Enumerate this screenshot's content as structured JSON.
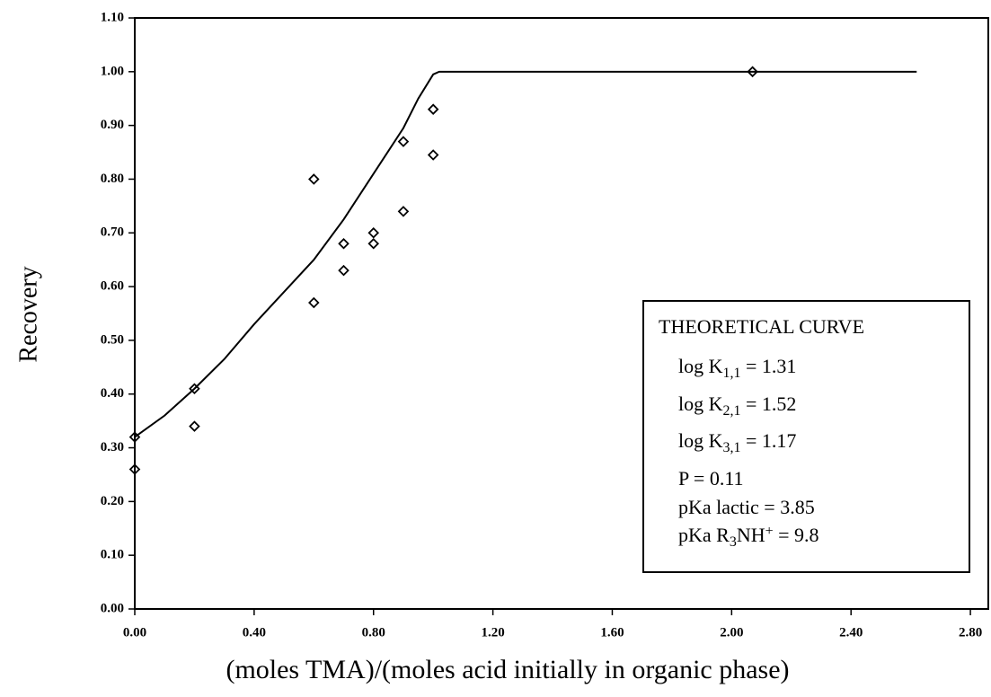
{
  "chart_data": {
    "type": "scatter",
    "x_label": "(moles TMA)/(moles acid initially in organic phase)",
    "y_label": "Recovery",
    "xlim": [
      0,
      2.86
    ],
    "ylim": [
      0,
      1.1
    ],
    "xticks": [
      {
        "value": 0,
        "label": "0.00"
      },
      {
        "value": 0.4,
        "label": "0.40"
      },
      {
        "value": 0.8,
        "label": "0.80"
      },
      {
        "value": 1.2,
        "label": "1.20"
      },
      {
        "value": 1.6,
        "label": "1.60"
      },
      {
        "value": 2.0,
        "label": "2.00"
      },
      {
        "value": 2.4,
        "label": "2.40"
      },
      {
        "value": 2.8,
        "label": "2.80"
      }
    ],
    "yticks": [
      {
        "value": 0,
        "label": "0.00"
      },
      {
        "value": 0.1,
        "label": "0.10"
      },
      {
        "value": 0.2,
        "label": "0.20"
      },
      {
        "value": 0.3,
        "label": "0.30"
      },
      {
        "value": 0.4,
        "label": "0.40"
      },
      {
        "value": 0.5,
        "label": "0.50"
      },
      {
        "value": 0.6,
        "label": "0.60"
      },
      {
        "value": 0.7,
        "label": "0.70"
      },
      {
        "value": 0.8,
        "label": "0.80"
      },
      {
        "value": 0.9,
        "label": "0.90"
      },
      {
        "value": 1.0,
        "label": "1.00"
      },
      {
        "value": 1.1,
        "label": "1.10"
      }
    ],
    "grid": false,
    "series": [
      {
        "type": "scatter",
        "color": "#000000",
        "x": [
          0,
          0,
          0.2,
          0.2,
          0.6,
          0.6,
          0.7,
          0.7,
          0.8,
          0.8,
          0.9,
          0.9,
          1.0,
          1.0,
          2.07
        ],
        "values": [
          0.32,
          0.26,
          0.41,
          0.34,
          0.8,
          0.57,
          0.68,
          0.63,
          0.7,
          0.68,
          0.87,
          0.74,
          0.93,
          0.845,
          1.0
        ]
      },
      {
        "type": "line",
        "name": "THEORETICAL CURVE",
        "color": "#000000",
        "x": [
          0,
          0.1,
          0.2,
          0.3,
          0.4,
          0.5,
          0.6,
          0.7,
          0.8,
          0.9,
          0.95,
          1.0,
          1.02,
          1.2,
          2.0,
          2.62
        ],
        "values": [
          0.32,
          0.36,
          0.41,
          0.465,
          0.53,
          0.59,
          0.65,
          0.725,
          0.81,
          0.895,
          0.95,
          0.995,
          1.0,
          1.0,
          1.0,
          1.0
        ]
      }
    ],
    "annotations": [
      [
        {
          "text": "log K"
        },
        {
          "sub": "1,1"
        },
        {
          "text": " = 1.31"
        }
      ],
      [
        {
          "text": "log K"
        },
        {
          "sub": "2,1"
        },
        {
          "text": " = 1.52"
        }
      ],
      [
        {
          "text": "log K"
        },
        {
          "sub": "3,1"
        },
        {
          "text": " = 1.17"
        }
      ],
      [
        {
          "text": "P = 0.11"
        }
      ],
      [
        {
          "text": "pKa lactic = 3.85"
        }
      ],
      [
        {
          "text": "pKa R"
        },
        {
          "sub": "3"
        },
        {
          "text": "NH"
        },
        {
          "sup": "+"
        },
        {
          "text": " = 9.8"
        }
      ]
    ]
  }
}
